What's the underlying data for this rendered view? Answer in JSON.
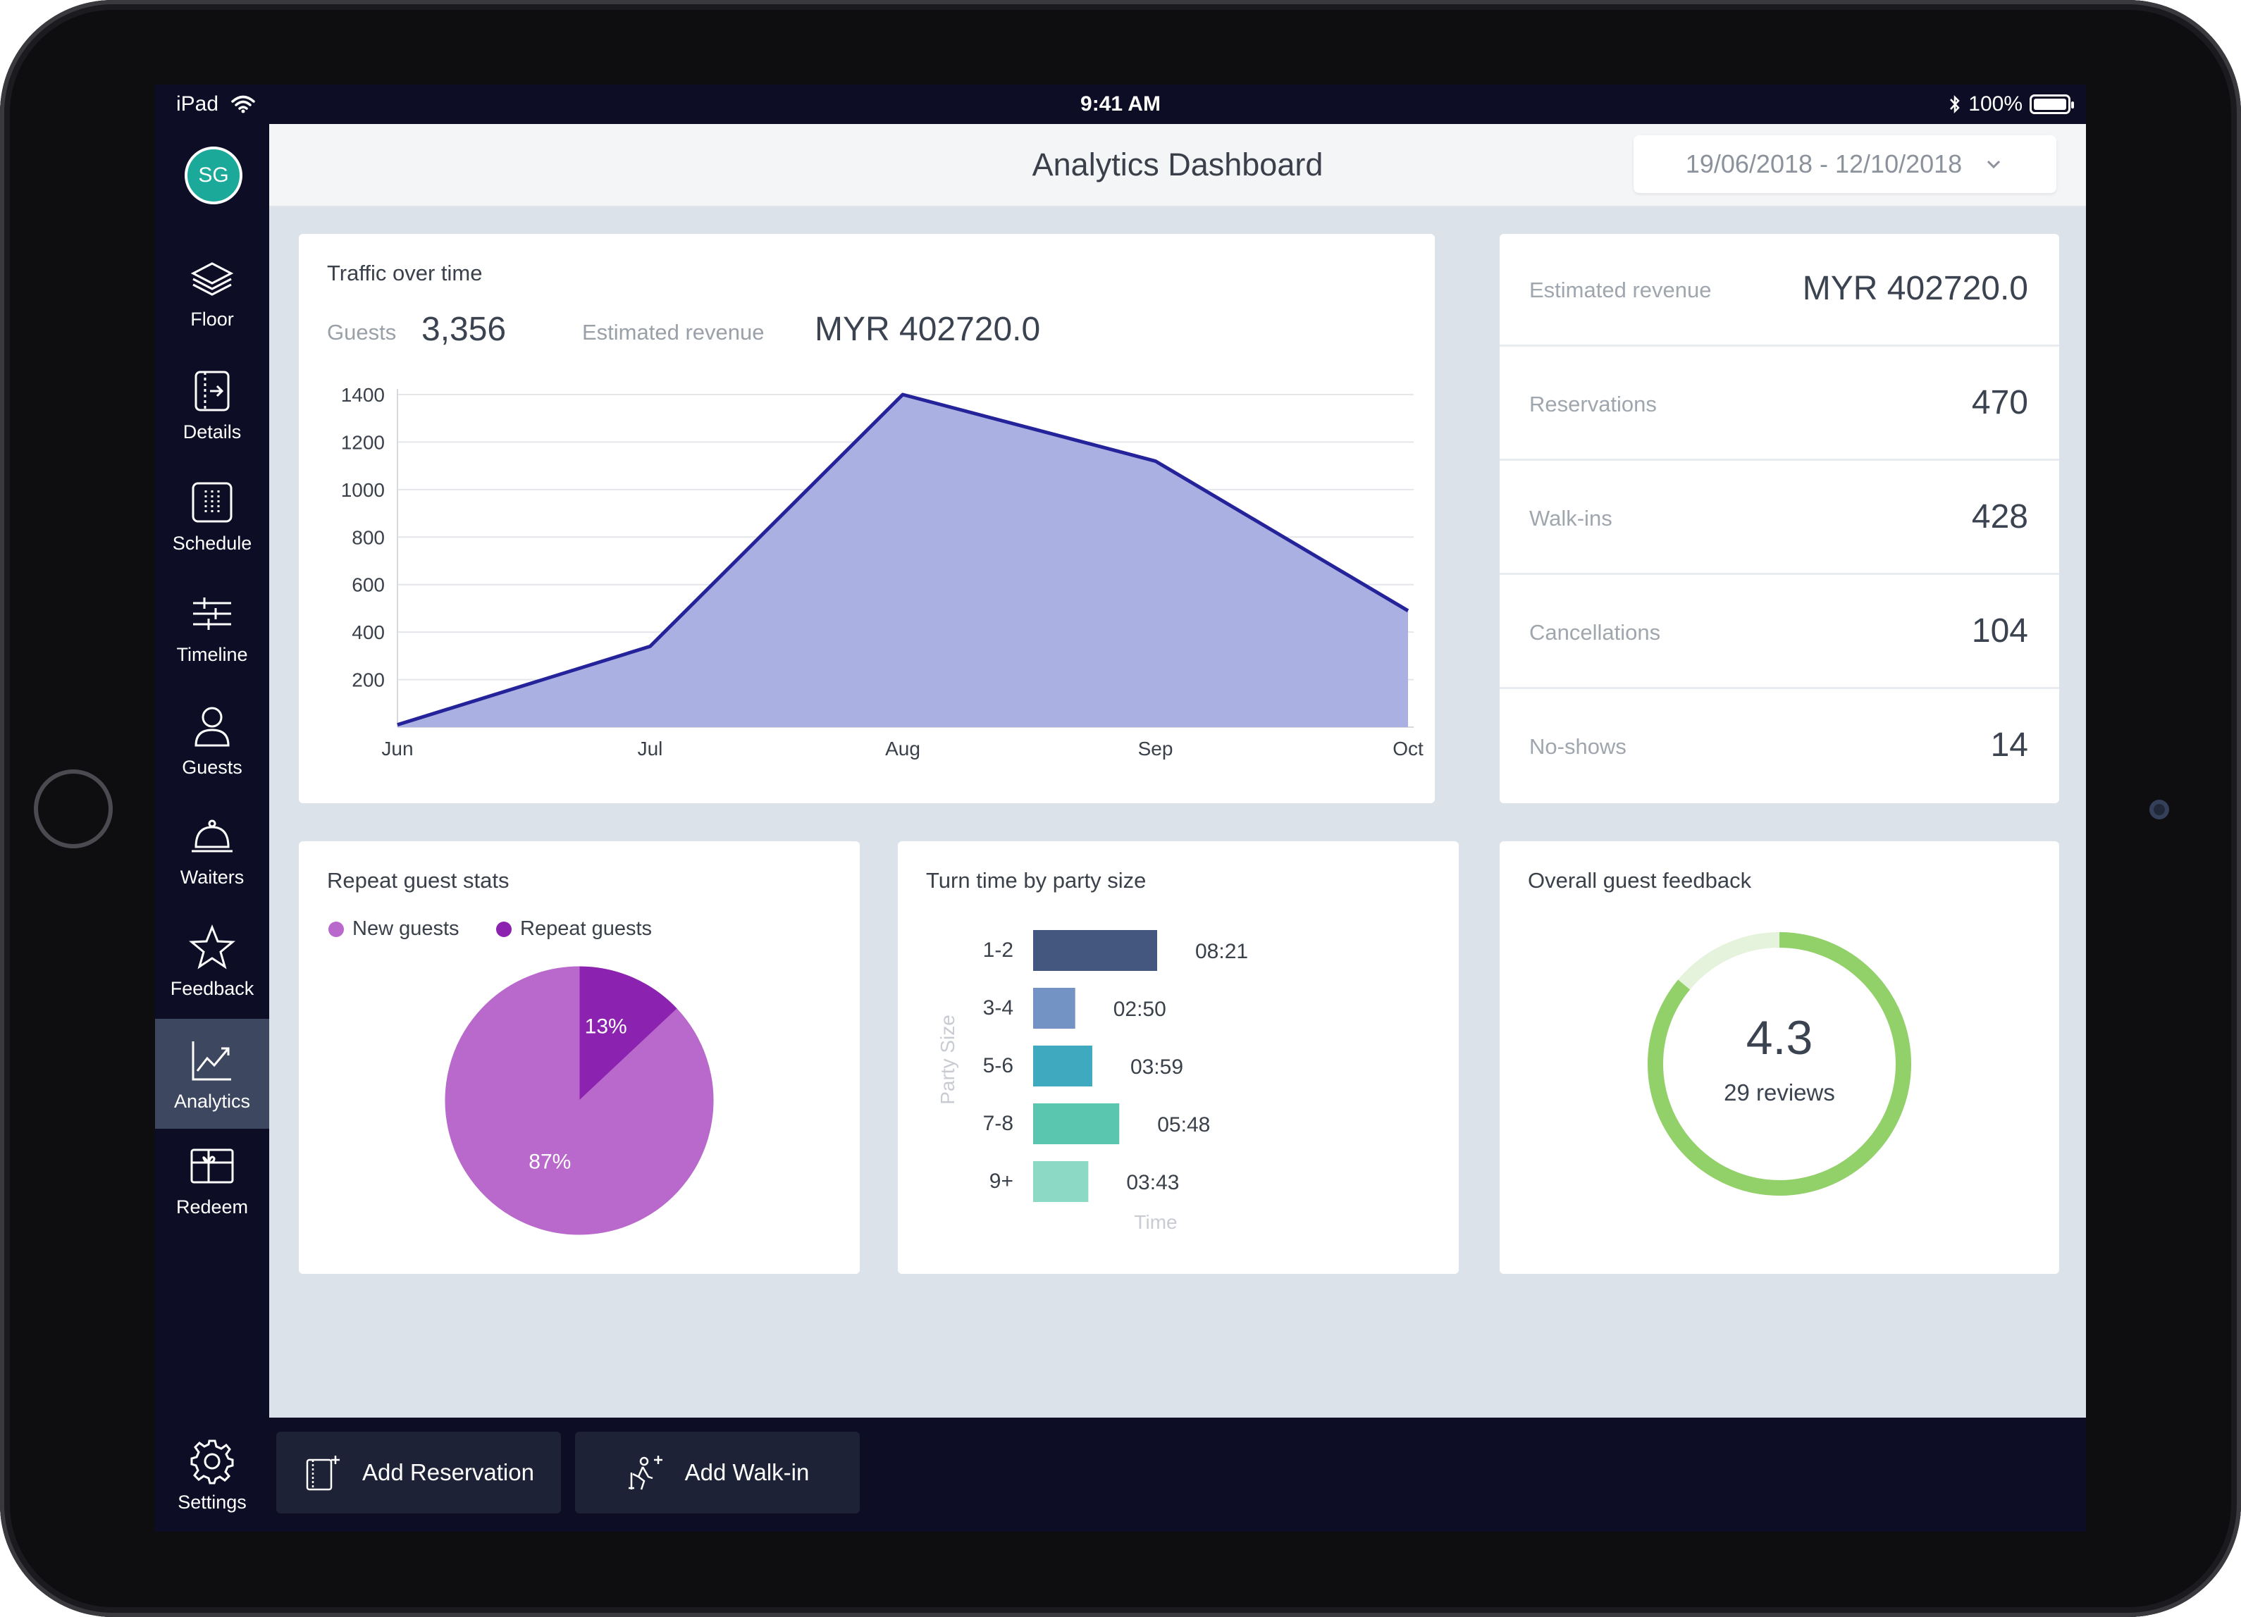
{
  "status_bar": {
    "device": "iPad",
    "time": "9:41 AM",
    "battery": "100%"
  },
  "user": {
    "initials": "SG"
  },
  "sidebar": {
    "items": [
      {
        "label": "Floor",
        "icon": "layers-icon"
      },
      {
        "label": "Details",
        "icon": "details-icon"
      },
      {
        "label": "Schedule",
        "icon": "schedule-icon"
      },
      {
        "label": "Timeline",
        "icon": "timeline-icon"
      },
      {
        "label": "Guests",
        "icon": "user-icon"
      },
      {
        "label": "Waiters",
        "icon": "cloche-icon"
      },
      {
        "label": "Feedback",
        "icon": "star-icon"
      },
      {
        "label": "Analytics",
        "icon": "trend-chart-icon",
        "active": true
      },
      {
        "label": "Redeem",
        "icon": "gift-card-icon"
      }
    ],
    "settings": {
      "label": "Settings",
      "icon": "gear-icon"
    }
  },
  "header": {
    "title": "Analytics Dashboard",
    "date_range": "19/06/2018 - 12/10/2018"
  },
  "traffic": {
    "title": "Traffic over time",
    "guests_label": "Guests",
    "guests_value": "3,356",
    "revenue_label": "Estimated revenue",
    "revenue_value": "MYR 402720.0"
  },
  "stats": [
    {
      "label": "Estimated revenue",
      "value": "MYR 402720.0"
    },
    {
      "label": "Reservations",
      "value": "470"
    },
    {
      "label": "Walk-ins",
      "value": "428"
    },
    {
      "label": "Cancellations",
      "value": "104"
    },
    {
      "label": "No-shows",
      "value": "14"
    }
  ],
  "repeat": {
    "title": "Repeat guest stats",
    "legend_new": "New guests",
    "legend_repeat": "Repeat guests",
    "new_color": "#b968cc",
    "repeat_color": "#8b22b0"
  },
  "turn": {
    "title": "Turn time by party size",
    "ylabel": "Party Size",
    "xlabel": "Time"
  },
  "feedback": {
    "title": "Overall guest feedback",
    "rating": "4.3",
    "reviews": "29 reviews",
    "ring_color": "#92d06a",
    "track_color": "#e5f2dc"
  },
  "actions": {
    "add_reservation": "Add Reservation",
    "add_walkin": "Add Walk-in"
  },
  "chart_data": [
    {
      "type": "area",
      "title": "Traffic over time",
      "categories": [
        "Jun",
        "Jul",
        "Aug",
        "Sep",
        "Oct"
      ],
      "values": [
        10,
        340,
        1400,
        1120,
        490
      ],
      "ylim": [
        0,
        1400
      ],
      "yticks": [
        200,
        400,
        600,
        800,
        1000,
        1200,
        1400
      ],
      "grid": true,
      "line_color": "#25239a",
      "fill_color": "#aab0e2"
    },
    {
      "type": "pie",
      "title": "Repeat guest stats",
      "slices": [
        {
          "name": "New guests",
          "value": 87,
          "label": "87%"
        },
        {
          "name": "Repeat guests",
          "value": 13,
          "label": "13%"
        }
      ]
    },
    {
      "type": "bar",
      "orientation": "horizontal",
      "title": "Turn time by party size",
      "categories": [
        "1-2",
        "3-4",
        "5-6",
        "7-8",
        "9+"
      ],
      "values_minutes": [
        8.35,
        2.833,
        3.983,
        5.8,
        3.717
      ],
      "labels": [
        "08:21",
        "02:50",
        "03:59",
        "05:48",
        "03:43"
      ],
      "colors": [
        "#44587f",
        "#7293c4",
        "#3fa9c0",
        "#5ac6b0",
        "#8cd9c5"
      ],
      "xlabel": "Time",
      "ylabel": "Party Size"
    }
  ]
}
